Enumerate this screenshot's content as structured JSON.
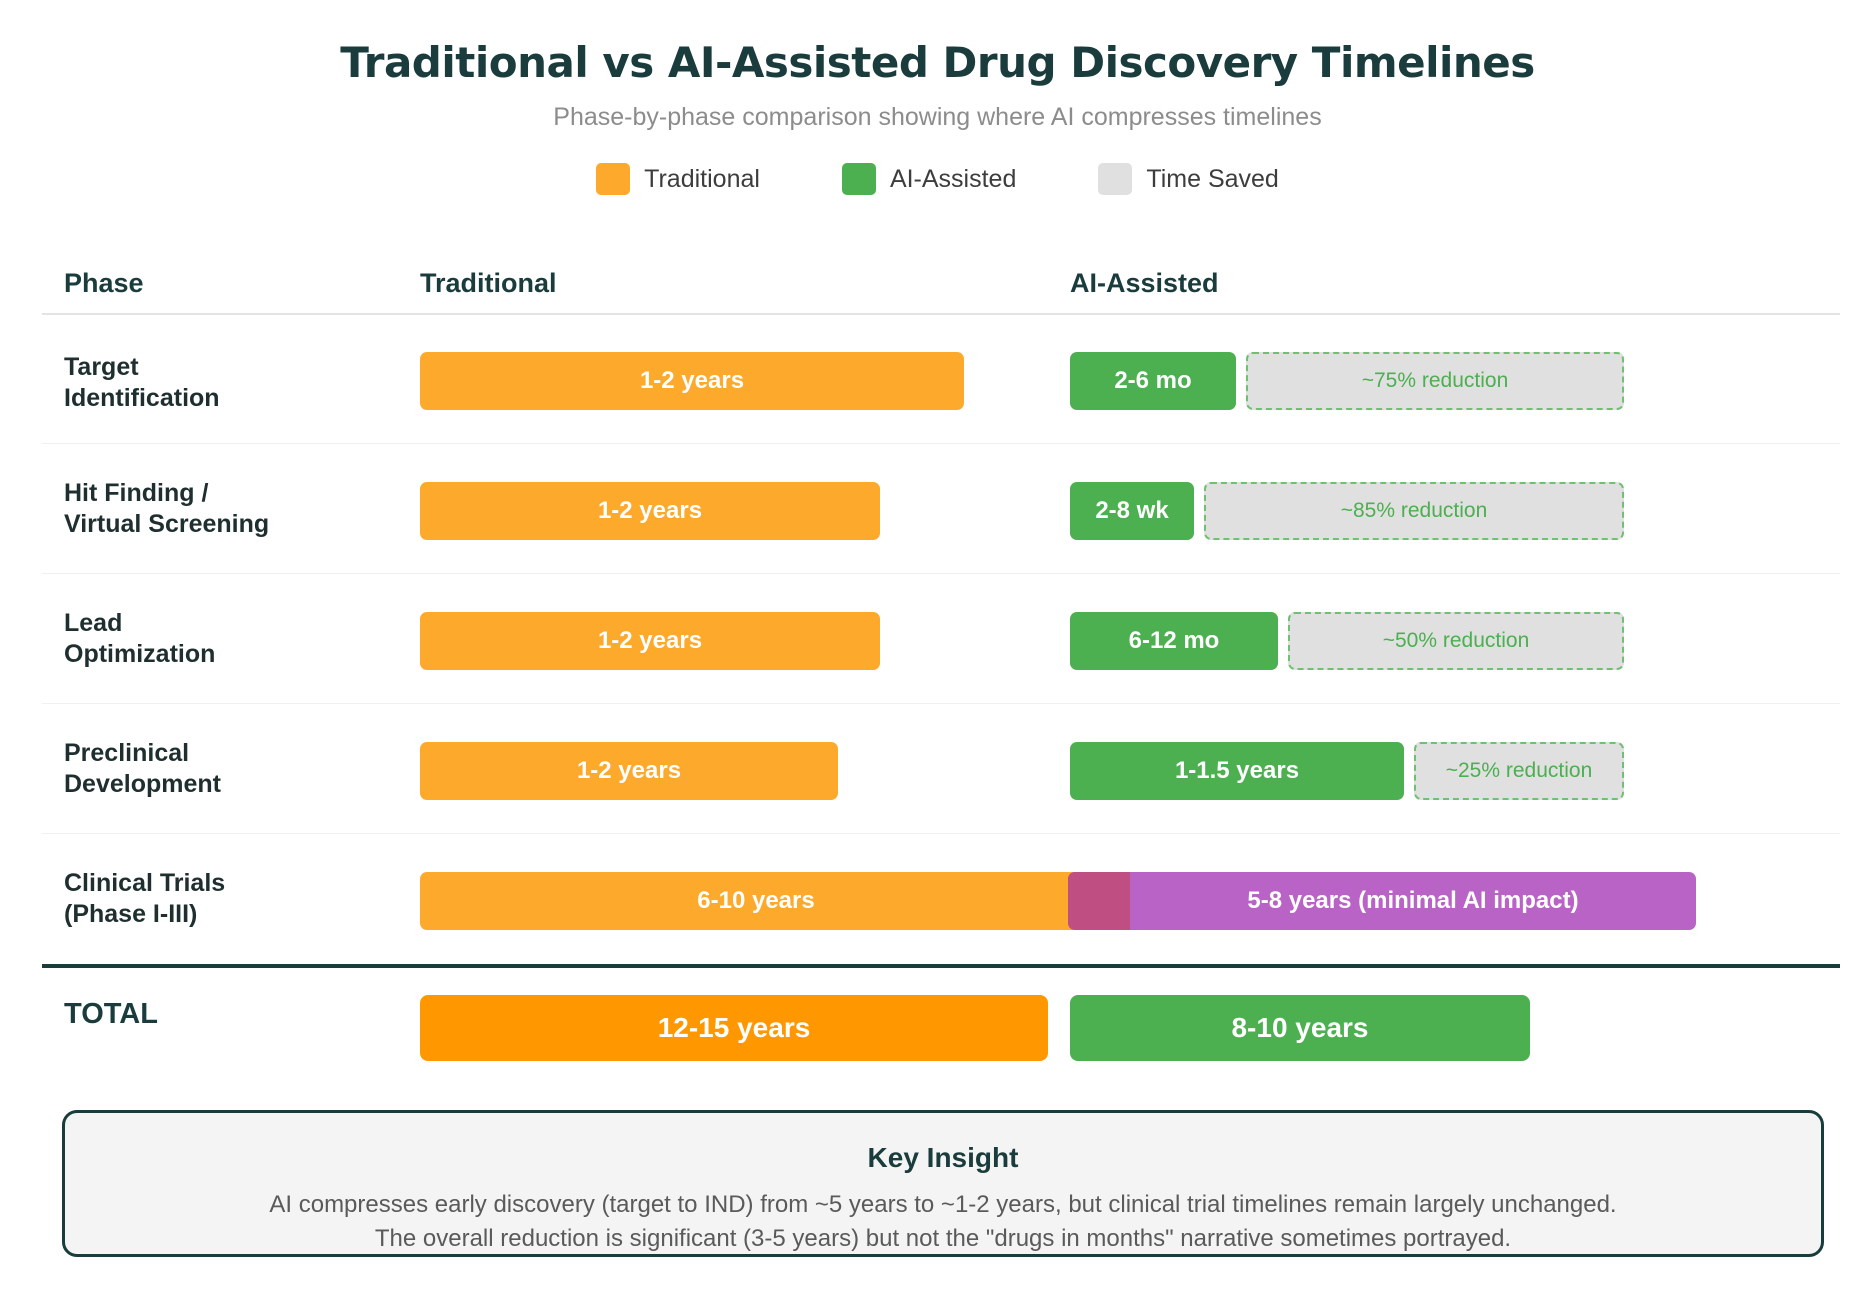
{
  "header": {
    "title": "Traditional vs AI-Assisted Drug Discovery Timelines",
    "subtitle": "Phase-by-phase comparison showing where AI compresses timelines"
  },
  "legend": [
    {
      "label": "Traditional",
      "color": "#fda92c"
    },
    {
      "label": "AI-Assisted",
      "color": "#4caf50"
    },
    {
      "label": "Time Saved",
      "color": "#e0e0e0"
    }
  ],
  "columns": {
    "phase": "Phase",
    "traditional": "Traditional",
    "ai": "AI-Assisted"
  },
  "rows": [
    {
      "label_line1": "Target",
      "label_line2": "Identification",
      "traditional": "1-2 years",
      "ai": "2-6 mo",
      "saved": "~75% reduction"
    },
    {
      "label_line1": "Hit Finding /",
      "label_line2": "Virtual Screening",
      "traditional": "1-2 years",
      "ai": "2-8 wk",
      "saved": "~85% reduction"
    },
    {
      "label_line1": "Lead",
      "label_line2": "Optimization",
      "traditional": "1-2 years",
      "ai": "6-12 mo",
      "saved": "~50% reduction"
    },
    {
      "label_line1": "Preclinical",
      "label_line2": "Development",
      "traditional": "1-2 years",
      "ai": "1-1.5 years",
      "saved": "~25% reduction"
    },
    {
      "label_line1": "Clinical Trials",
      "label_line2": "(Phase I-III)",
      "traditional": "6-10 years",
      "ai": "5-8 years (minimal AI impact)"
    }
  ],
  "total": {
    "label": "TOTAL",
    "traditional": "12-15 years",
    "ai": "8-10 years"
  },
  "insight": {
    "title": "Key Insight",
    "line1": "AI compresses early discovery (target to IND) from ~5 years to ~1-2 years, but clinical trial timelines remain largely unchanged.",
    "line2": "The overall reduction is significant (3-5 years) but not the \"drugs in months\" narrative sometimes portrayed."
  },
  "colors": {
    "traditional": "#fda92c",
    "ai": "#4caf50",
    "saved": "#e0e0e0",
    "clinical_ai": "#b963c6",
    "heading": "#1a3c3c"
  }
}
